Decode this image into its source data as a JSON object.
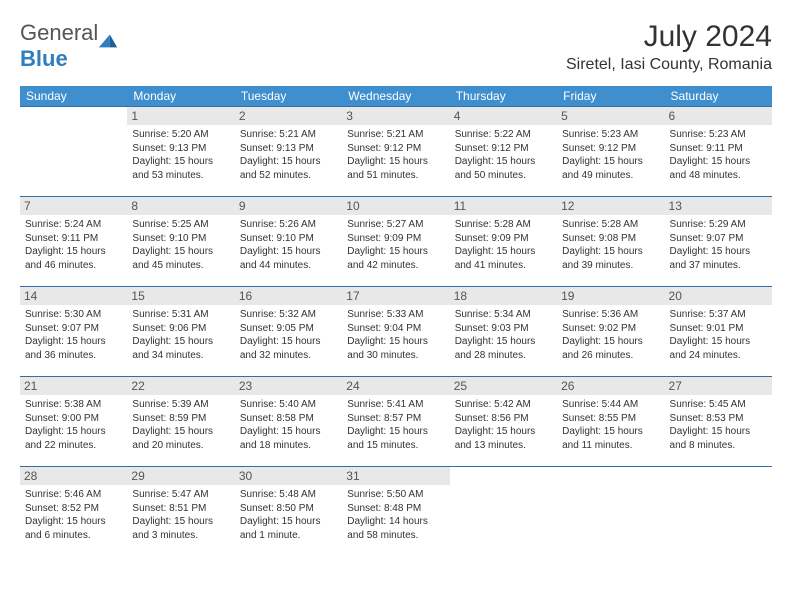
{
  "logo": {
    "text1": "General",
    "text2": "Blue"
  },
  "title": "July 2024",
  "location": "Siretel, Iasi County, Romania",
  "colors": {
    "header_bg": "#3f8fcf",
    "header_text": "#ffffff",
    "border": "#2f6faa",
    "daynum_bg": "#e8e8e8",
    "text": "#333333",
    "logo_gray": "#555555",
    "logo_blue": "#2f7fbf"
  },
  "dayHeaders": [
    "Sunday",
    "Monday",
    "Tuesday",
    "Wednesday",
    "Thursday",
    "Friday",
    "Saturday"
  ],
  "weeks": [
    [
      {
        "empty": true
      },
      {
        "n": "1",
        "sunrise": "5:20 AM",
        "sunset": "9:13 PM",
        "daylight": "15 hours and 53 minutes."
      },
      {
        "n": "2",
        "sunrise": "5:21 AM",
        "sunset": "9:13 PM",
        "daylight": "15 hours and 52 minutes."
      },
      {
        "n": "3",
        "sunrise": "5:21 AM",
        "sunset": "9:12 PM",
        "daylight": "15 hours and 51 minutes."
      },
      {
        "n": "4",
        "sunrise": "5:22 AM",
        "sunset": "9:12 PM",
        "daylight": "15 hours and 50 minutes."
      },
      {
        "n": "5",
        "sunrise": "5:23 AM",
        "sunset": "9:12 PM",
        "daylight": "15 hours and 49 minutes."
      },
      {
        "n": "6",
        "sunrise": "5:23 AM",
        "sunset": "9:11 PM",
        "daylight": "15 hours and 48 minutes."
      }
    ],
    [
      {
        "n": "7",
        "sunrise": "5:24 AM",
        "sunset": "9:11 PM",
        "daylight": "15 hours and 46 minutes."
      },
      {
        "n": "8",
        "sunrise": "5:25 AM",
        "sunset": "9:10 PM",
        "daylight": "15 hours and 45 minutes."
      },
      {
        "n": "9",
        "sunrise": "5:26 AM",
        "sunset": "9:10 PM",
        "daylight": "15 hours and 44 minutes."
      },
      {
        "n": "10",
        "sunrise": "5:27 AM",
        "sunset": "9:09 PM",
        "daylight": "15 hours and 42 minutes."
      },
      {
        "n": "11",
        "sunrise": "5:28 AM",
        "sunset": "9:09 PM",
        "daylight": "15 hours and 41 minutes."
      },
      {
        "n": "12",
        "sunrise": "5:28 AM",
        "sunset": "9:08 PM",
        "daylight": "15 hours and 39 minutes."
      },
      {
        "n": "13",
        "sunrise": "5:29 AM",
        "sunset": "9:07 PM",
        "daylight": "15 hours and 37 minutes."
      }
    ],
    [
      {
        "n": "14",
        "sunrise": "5:30 AM",
        "sunset": "9:07 PM",
        "daylight": "15 hours and 36 minutes."
      },
      {
        "n": "15",
        "sunrise": "5:31 AM",
        "sunset": "9:06 PM",
        "daylight": "15 hours and 34 minutes."
      },
      {
        "n": "16",
        "sunrise": "5:32 AM",
        "sunset": "9:05 PM",
        "daylight": "15 hours and 32 minutes."
      },
      {
        "n": "17",
        "sunrise": "5:33 AM",
        "sunset": "9:04 PM",
        "daylight": "15 hours and 30 minutes."
      },
      {
        "n": "18",
        "sunrise": "5:34 AM",
        "sunset": "9:03 PM",
        "daylight": "15 hours and 28 minutes."
      },
      {
        "n": "19",
        "sunrise": "5:36 AM",
        "sunset": "9:02 PM",
        "daylight": "15 hours and 26 minutes."
      },
      {
        "n": "20",
        "sunrise": "5:37 AM",
        "sunset": "9:01 PM",
        "daylight": "15 hours and 24 minutes."
      }
    ],
    [
      {
        "n": "21",
        "sunrise": "5:38 AM",
        "sunset": "9:00 PM",
        "daylight": "15 hours and 22 minutes."
      },
      {
        "n": "22",
        "sunrise": "5:39 AM",
        "sunset": "8:59 PM",
        "daylight": "15 hours and 20 minutes."
      },
      {
        "n": "23",
        "sunrise": "5:40 AM",
        "sunset": "8:58 PM",
        "daylight": "15 hours and 18 minutes."
      },
      {
        "n": "24",
        "sunrise": "5:41 AM",
        "sunset": "8:57 PM",
        "daylight": "15 hours and 15 minutes."
      },
      {
        "n": "25",
        "sunrise": "5:42 AM",
        "sunset": "8:56 PM",
        "daylight": "15 hours and 13 minutes."
      },
      {
        "n": "26",
        "sunrise": "5:44 AM",
        "sunset": "8:55 PM",
        "daylight": "15 hours and 11 minutes."
      },
      {
        "n": "27",
        "sunrise": "5:45 AM",
        "sunset": "8:53 PM",
        "daylight": "15 hours and 8 minutes."
      }
    ],
    [
      {
        "n": "28",
        "sunrise": "5:46 AM",
        "sunset": "8:52 PM",
        "daylight": "15 hours and 6 minutes."
      },
      {
        "n": "29",
        "sunrise": "5:47 AM",
        "sunset": "8:51 PM",
        "daylight": "15 hours and 3 minutes."
      },
      {
        "n": "30",
        "sunrise": "5:48 AM",
        "sunset": "8:50 PM",
        "daylight": "15 hours and 1 minute."
      },
      {
        "n": "31",
        "sunrise": "5:50 AM",
        "sunset": "8:48 PM",
        "daylight": "14 hours and 58 minutes."
      },
      {
        "empty": true
      },
      {
        "empty": true
      },
      {
        "empty": true
      }
    ]
  ],
  "labels": {
    "sunrise": "Sunrise:",
    "sunset": "Sunset:",
    "daylight": "Daylight:"
  }
}
